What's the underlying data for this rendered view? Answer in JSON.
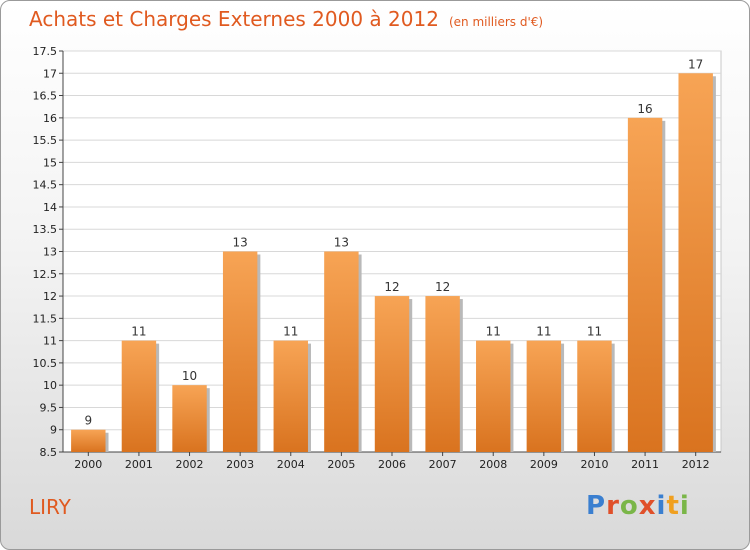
{
  "chart_data": {
    "type": "bar",
    "title": "Achats et Charges Externes 2000 à 2012",
    "subtitle": "(en milliers d'€)",
    "categories": [
      "2000",
      "2001",
      "2002",
      "2003",
      "2004",
      "2005",
      "2006",
      "2007",
      "2008",
      "2009",
      "2010",
      "2011",
      "2012"
    ],
    "values": [
      9,
      11,
      10,
      13,
      11,
      13,
      12,
      12,
      11,
      11,
      11,
      16,
      17
    ],
    "value_labels": [
      "9",
      "11",
      "10",
      "13",
      "11",
      "13",
      "12",
      "12",
      "11",
      "11",
      "11",
      "16",
      "17"
    ],
    "ylim": [
      8.5,
      17.5
    ],
    "yticks": [
      8.5,
      9,
      9.5,
      10,
      10.5,
      11,
      11.5,
      12,
      12.5,
      13,
      13.5,
      14,
      14.5,
      15,
      15.5,
      16,
      16.5,
      17,
      17.5
    ],
    "ytick_labels": [
      "8.5",
      "9",
      "9.5",
      "10",
      "10.5",
      "11",
      "11.5",
      "12",
      "12.5",
      "13",
      "13.5",
      "14",
      "14.5",
      "15",
      "15.5",
      "16",
      "16.5",
      "17",
      "17.5"
    ],
    "grid": true,
    "bar_color": "#f0903a"
  },
  "commune": "LIRY",
  "logo": {
    "letters": [
      "P",
      "r",
      "o",
      "x",
      "i",
      "t",
      "i"
    ],
    "colors": [
      "#3a7fd0",
      "#e0502a",
      "#7ab648",
      "#e0502a",
      "#3a7fd0",
      "#f0a020",
      "#7ab648"
    ]
  }
}
